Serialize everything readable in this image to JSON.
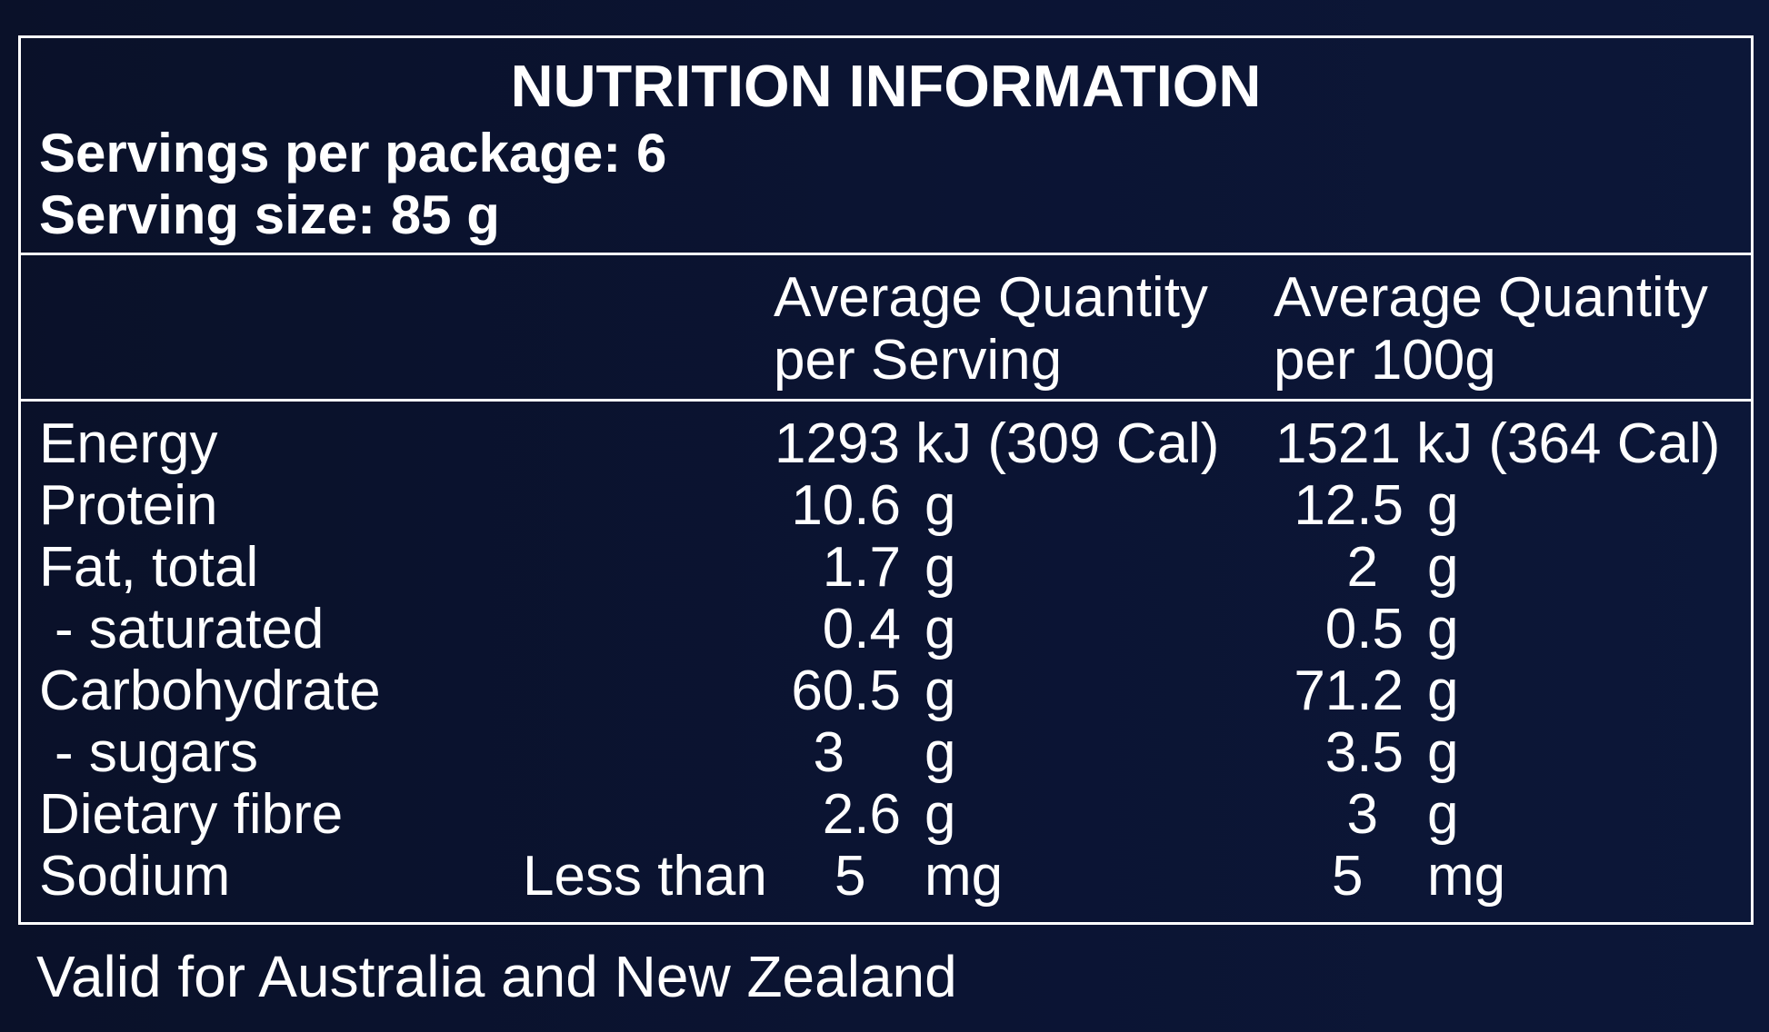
{
  "title": "NUTRITION INFORMATION",
  "servings_per_package": "Servings per package: 6",
  "serving_size": "Serving size: 85 g",
  "columns": {
    "per_serving_line1": "Average Quantity",
    "per_serving_line2": "per Serving",
    "per_100g_line1": "Average Quantity",
    "per_100g_line2": "per 100g"
  },
  "rows": [
    {
      "nutrient": "Energy",
      "serving": "1293 kJ (309 Cal)",
      "per100g": "1521 kJ (364 Cal)"
    },
    {
      "nutrient": "Protein",
      "serving_value": "10.6",
      "serving_unit": "g",
      "per100g_value": "12.5",
      "per100g_unit": "g"
    },
    {
      "nutrient": "Fat, total",
      "serving_value": "1.7",
      "serving_unit": "g",
      "per100g_value": "2",
      "per100g_unit": "g"
    },
    {
      "nutrient": "- saturated",
      "serving_value": "0.4",
      "serving_unit": "g",
      "per100g_value": "0.5",
      "per100g_unit": "g"
    },
    {
      "nutrient": "Carbohydrate",
      "serving_value": "60.5",
      "serving_unit": "g",
      "per100g_value": "71.2",
      "per100g_unit": "g"
    },
    {
      "nutrient": "- sugars",
      "serving_value": "3",
      "serving_unit": "g",
      "per100g_value": "3.5",
      "per100g_unit": "g"
    },
    {
      "nutrient": "Dietary fibre",
      "serving_value": "2.6",
      "serving_unit": "g",
      "per100g_value": "3",
      "per100g_unit": "g"
    },
    {
      "nutrient": "Sodium",
      "serving_qualifier": "Less than",
      "serving_value": "5",
      "serving_unit": "mg",
      "per100g_value": "5",
      "per100g_unit": "mg"
    }
  ],
  "footer": "Valid for Australia and New Zealand",
  "colors": {
    "background": "#0b1330",
    "text": "#ffffff",
    "border": "#ffffff"
  }
}
